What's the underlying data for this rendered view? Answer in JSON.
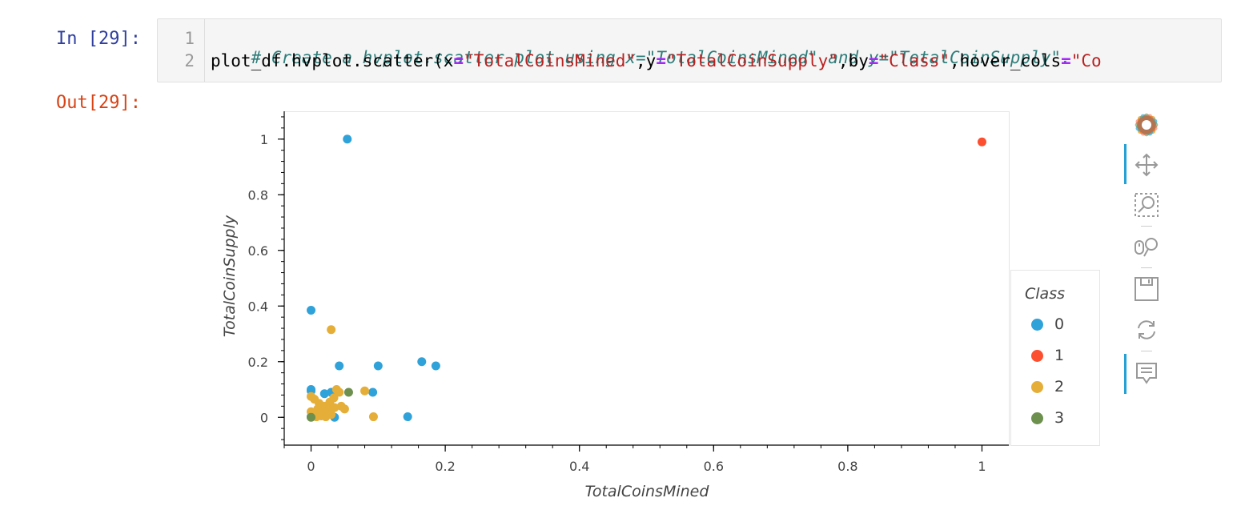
{
  "cell": {
    "in_prompt": "In [29]:",
    "out_prompt": "Out[29]:",
    "line_numbers": [
      "1",
      "2"
    ],
    "code_line1_comment": "# Create a hvplot.scatter plot using x=\"TotalCoinsMined\" and y=\"TotalCoinSupply\".",
    "code_line2": {
      "t1": "plot_df.hvplot.scatter(x",
      "op": "=",
      "s_x": "\"TotalCoinsMined\"",
      "t2": ",y",
      "s_y": "\"TotalCoinSupply\"",
      "t3": ",by",
      "s_by": "\"Class\"",
      "t4": ",hover_cols",
      "s_hc": "\"Co"
    }
  },
  "chart_data": {
    "type": "scatter",
    "title": "",
    "xlabel": "TotalCoinsMined",
    "ylabel": "TotalCoinSupply",
    "xlim": [
      -0.04,
      1.04
    ],
    "ylim": [
      -0.1,
      1.1
    ],
    "xticks": [
      "0",
      "0.2",
      "0.4",
      "0.6",
      "0.8",
      "1"
    ],
    "yticks": [
      "0",
      "0.2",
      "0.4",
      "0.6",
      "0.8",
      "1"
    ],
    "legend": {
      "title": "Class",
      "position": "right"
    },
    "grid": false,
    "series": [
      {
        "name": "0",
        "color": "#30a2da",
        "points": [
          [
            0.054,
            1.0
          ],
          [
            0.0,
            0.385
          ],
          [
            0.042,
            0.185
          ],
          [
            0.1,
            0.185
          ],
          [
            0.165,
            0.2
          ],
          [
            0.186,
            0.185
          ],
          [
            0.0,
            0.1
          ],
          [
            0.0,
            0.095
          ],
          [
            0.02,
            0.085
          ],
          [
            0.03,
            0.09
          ],
          [
            0.092,
            0.09
          ],
          [
            0.035,
            0.0
          ],
          [
            0.144,
            0.002
          ],
          [
            0.0,
            0.002
          ],
          [
            0.025,
            0.01
          ]
        ]
      },
      {
        "name": "1",
        "color": "#fc4f30",
        "points": [
          [
            1.0,
            0.99
          ]
        ]
      },
      {
        "name": "2",
        "color": "#e5ae38",
        "points": [
          [
            0.03,
            0.315
          ],
          [
            0.0,
            0.075
          ],
          [
            0.005,
            0.065
          ],
          [
            0.012,
            0.05
          ],
          [
            0.02,
            0.04
          ],
          [
            0.028,
            0.055
          ],
          [
            0.034,
            0.07
          ],
          [
            0.038,
            0.1
          ],
          [
            0.042,
            0.09
          ],
          [
            0.01,
            0.03
          ],
          [
            0.015,
            0.02
          ],
          [
            0.02,
            0.015
          ],
          [
            0.025,
            0.03
          ],
          [
            0.03,
            0.01
          ],
          [
            0.035,
            0.035
          ],
          [
            0.045,
            0.04
          ],
          [
            0.05,
            0.03
          ],
          [
            0.08,
            0.095
          ],
          [
            0.093,
            0.002
          ],
          [
            0.008,
            0.002
          ],
          [
            0.015,
            0.005
          ],
          [
            0.022,
            0.002
          ],
          [
            0.027,
            0.02
          ],
          [
            0.0,
            0.02
          ]
        ]
      },
      {
        "name": "3",
        "color": "#6d904f",
        "points": [
          [
            0.056,
            0.09
          ],
          [
            0.0,
            0.0
          ]
        ]
      }
    ]
  },
  "toolbar": {
    "tools": [
      "bokeh-logo-icon",
      "pan-icon",
      "box-zoom-icon",
      "wheel-zoom-icon",
      "save-icon",
      "reset-icon",
      "hover-icon"
    ]
  }
}
